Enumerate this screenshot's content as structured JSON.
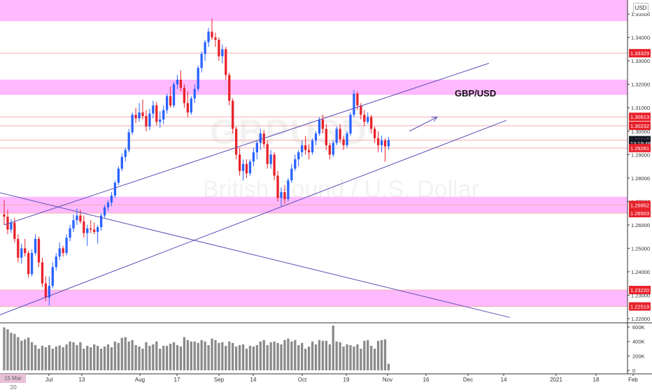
{
  "header": {
    "pair_label": "GBP/USD",
    "currency_badge": "USD",
    "watermark_symbol": "GBPUSD",
    "watermark_description": "British Pound / U.S. Dollar"
  },
  "colors": {
    "up": "#2962ff",
    "down": "#e8212b",
    "zone": "#ff80ff",
    "trendline": "#5b4fb5",
    "volume": "#8a8a8a",
    "price_line": "#f3aeb1"
  },
  "chart_data": {
    "type": "candlestick",
    "price_axis": {
      "ticks": [
        "1.35000",
        "1.34000",
        "1.33000",
        "1.32000",
        "1.31000",
        "1.30000",
        "1.29000",
        "1.28000",
        "1.27000",
        "1.26000",
        "1.25000",
        "1.24000",
        "1.23000",
        "1.22000"
      ],
      "ylim": [
        1.2188,
        1.356
      ]
    },
    "volume_axis": {
      "ticks": [
        "600K",
        "400K",
        "200K",
        "0"
      ],
      "ylim": [
        0,
        620000
      ]
    },
    "time_axis": {
      "labels": [
        "15",
        "Jul",
        "13",
        "Aug",
        "17",
        "Sep",
        "14",
        "Oct",
        "19",
        "Nov",
        "16",
        "Dec",
        "14",
        "2021",
        "18",
        "Feb"
      ]
    },
    "price_labels": [
      {
        "text": "1.33329",
        "value": 1.33329,
        "kind": "level"
      },
      {
        "text": "1.30613",
        "value": 1.30613,
        "kind": "level"
      },
      {
        "text": "1.30232",
        "value": 1.30232,
        "kind": "level"
      },
      {
        "text": "1.29617",
        "value": 1.29617,
        "kind": "last"
      },
      {
        "text": "13:19:48",
        "value": 1.29488,
        "kind": "countdown"
      },
      {
        "text": "1.29281",
        "value": 1.29281,
        "kind": "level"
      },
      {
        "text": "1.26852",
        "value": 1.26852,
        "kind": "level"
      },
      {
        "text": "1.26503",
        "value": 1.26503,
        "kind": "level"
      },
      {
        "text": "1.23220",
        "value": 1.2322,
        "kind": "level"
      },
      {
        "text": "1.22519",
        "value": 1.22519,
        "kind": "level"
      }
    ],
    "horizontal_lines": [
      1.33329,
      1.30613,
      1.30232,
      1.29617,
      1.29281,
      1.26852,
      1.26503,
      1.2322,
      1.22519
    ],
    "zones": [
      {
        "from": 1.347,
        "to": 1.356
      },
      {
        "from": 1.3155,
        "to": 1.322
      },
      {
        "from": 1.265,
        "to": 1.272
      },
      {
        "from": 1.2252,
        "to": 1.2322
      }
    ],
    "date_badge": "15 Mar '20",
    "candles": [
      [
        1.2645,
        1.2705,
        1.26,
        1.2635
      ],
      [
        1.2635,
        1.2665,
        1.256,
        1.258
      ],
      [
        1.258,
        1.2625,
        1.2565,
        1.261
      ],
      [
        1.261,
        1.263,
        1.2525,
        1.254
      ],
      [
        1.254,
        1.256,
        1.244,
        1.246
      ],
      [
        1.246,
        1.252,
        1.2435,
        1.25
      ],
      [
        1.25,
        1.254,
        1.2465,
        1.248
      ],
      [
        1.248,
        1.249,
        1.2375,
        1.239
      ],
      [
        1.239,
        1.2495,
        1.238,
        1.248
      ],
      [
        1.248,
        1.256,
        1.247,
        1.254
      ],
      [
        1.254,
        1.255,
        1.242,
        1.244
      ],
      [
        1.244,
        1.246,
        1.2335,
        1.235
      ],
      [
        1.235,
        1.238,
        1.2275,
        1.229
      ],
      [
        1.229,
        1.238,
        1.2256,
        1.234
      ],
      [
        1.234,
        1.244,
        1.233,
        1.242
      ],
      [
        1.242,
        1.248,
        1.2405,
        1.2465
      ],
      [
        1.2465,
        1.2525,
        1.245,
        1.25
      ],
      [
        1.25,
        1.251,
        1.2465,
        1.248
      ],
      [
        1.248,
        1.256,
        1.247,
        1.2545
      ],
      [
        1.2545,
        1.26,
        1.253,
        1.2585
      ],
      [
        1.2585,
        1.2645,
        1.257,
        1.262
      ],
      [
        1.262,
        1.267,
        1.26,
        1.264
      ],
      [
        1.264,
        1.2665,
        1.2605,
        1.2615
      ],
      [
        1.2615,
        1.264,
        1.2545,
        1.2565
      ],
      [
        1.2565,
        1.26,
        1.251,
        1.2585
      ],
      [
        1.2585,
        1.262,
        1.2565,
        1.258
      ],
      [
        1.258,
        1.261,
        1.256,
        1.257
      ],
      [
        1.257,
        1.26,
        1.252,
        1.259
      ],
      [
        1.259,
        1.265,
        1.2575,
        1.264
      ],
      [
        1.264,
        1.2685,
        1.263,
        1.2675
      ],
      [
        1.2675,
        1.2705,
        1.266,
        1.2695
      ],
      [
        1.2695,
        1.274,
        1.268,
        1.2725
      ],
      [
        1.2725,
        1.279,
        1.2715,
        1.278
      ],
      [
        1.278,
        1.285,
        1.277,
        1.284
      ],
      [
        1.284,
        1.2905,
        1.283,
        1.289
      ],
      [
        1.289,
        1.293,
        1.287,
        1.292
      ],
      [
        1.292,
        1.301,
        1.291,
        1.2995
      ],
      [
        1.2995,
        1.308,
        1.2985,
        1.307
      ],
      [
        1.307,
        1.31,
        1.3035,
        1.3055
      ],
      [
        1.3055,
        1.312,
        1.304,
        1.308
      ],
      [
        1.308,
        1.3135,
        1.305,
        1.3065
      ],
      [
        1.3065,
        1.309,
        1.3,
        1.302
      ],
      [
        1.302,
        1.3095,
        1.3005,
        1.3075
      ],
      [
        1.3075,
        1.313,
        1.3055,
        1.311
      ],
      [
        1.311,
        1.3125,
        1.3025,
        1.304
      ],
      [
        1.304,
        1.3085,
        1.3015,
        1.305
      ],
      [
        1.305,
        1.311,
        1.303,
        1.309
      ],
      [
        1.309,
        1.316,
        1.3075,
        1.315
      ],
      [
        1.315,
        1.319,
        1.31,
        1.311
      ],
      [
        1.311,
        1.321,
        1.31,
        1.32
      ],
      [
        1.32,
        1.324,
        1.318,
        1.322
      ],
      [
        1.322,
        1.326,
        1.317,
        1.3185
      ],
      [
        1.3185,
        1.32,
        1.31,
        1.312
      ],
      [
        1.312,
        1.317,
        1.306,
        1.308
      ],
      [
        1.308,
        1.315,
        1.307,
        1.314
      ],
      [
        1.314,
        1.32,
        1.312,
        1.318
      ],
      [
        1.318,
        1.328,
        1.317,
        1.327
      ],
      [
        1.327,
        1.334,
        1.325,
        1.333
      ],
      [
        1.333,
        1.339,
        1.33,
        1.338
      ],
      [
        1.338,
        1.344,
        1.336,
        1.3425
      ],
      [
        1.3425,
        1.3481,
        1.339,
        1.34
      ],
      [
        1.34,
        1.342,
        1.336,
        1.339
      ],
      [
        1.339,
        1.34,
        1.33,
        1.332
      ],
      [
        1.332,
        1.337,
        1.329,
        1.335
      ],
      [
        1.335,
        1.336,
        1.322,
        1.324
      ],
      [
        1.324,
        1.325,
        1.311,
        1.313
      ],
      [
        1.313,
        1.314,
        1.299,
        1.301
      ],
      [
        1.301,
        1.302,
        1.288,
        1.29
      ],
      [
        1.29,
        1.293,
        1.281,
        1.283
      ],
      [
        1.283,
        1.288,
        1.279,
        1.286
      ],
      [
        1.286,
        1.288,
        1.28,
        1.282
      ],
      [
        1.282,
        1.288,
        1.281,
        1.287
      ],
      [
        1.287,
        1.293,
        1.285,
        1.291
      ],
      [
        1.291,
        1.296,
        1.288,
        1.295
      ],
      [
        1.295,
        1.301,
        1.292,
        1.299
      ],
      [
        1.299,
        1.3005,
        1.293,
        1.2945
      ],
      [
        1.2945,
        1.296,
        1.284,
        1.286
      ],
      [
        1.286,
        1.292,
        1.284,
        1.29
      ],
      [
        1.29,
        1.291,
        1.279,
        1.281
      ],
      [
        1.281,
        1.283,
        1.27,
        1.2715
      ],
      [
        1.2715,
        1.276,
        1.268,
        1.274
      ],
      [
        1.274,
        1.277,
        1.269,
        1.271
      ],
      [
        1.271,
        1.28,
        1.27,
        1.279
      ],
      [
        1.279,
        1.286,
        1.278,
        1.284
      ],
      [
        1.284,
        1.29,
        1.283,
        1.288
      ],
      [
        1.288,
        1.292,
        1.285,
        1.291
      ],
      [
        1.291,
        1.296,
        1.289,
        1.294
      ],
      [
        1.294,
        1.298,
        1.29,
        1.292
      ],
      [
        1.292,
        1.2945,
        1.288,
        1.291
      ],
      [
        1.291,
        1.297,
        1.29,
        1.296
      ],
      [
        1.296,
        1.3,
        1.294,
        1.299
      ],
      [
        1.299,
        1.306,
        1.298,
        1.305
      ],
      [
        1.305,
        1.307,
        1.299,
        1.301
      ],
      [
        1.301,
        1.303,
        1.292,
        1.294
      ],
      [
        1.294,
        1.295,
        1.288,
        1.29
      ],
      [
        1.29,
        1.296,
        1.289,
        1.295
      ],
      [
        1.295,
        1.302,
        1.294,
        1.301
      ],
      [
        1.301,
        1.303,
        1.295,
        1.2965
      ],
      [
        1.2965,
        1.298,
        1.292,
        1.294
      ],
      [
        1.294,
        1.3,
        1.293,
        1.299
      ],
      [
        1.299,
        1.308,
        1.298,
        1.307
      ],
      [
        1.307,
        1.3176,
        1.306,
        1.316
      ],
      [
        1.316,
        1.317,
        1.309,
        1.311
      ],
      [
        1.311,
        1.312,
        1.305,
        1.307
      ],
      [
        1.307,
        1.309,
        1.302,
        1.304
      ],
      [
        1.304,
        1.308,
        1.303,
        1.306
      ],
      [
        1.306,
        1.307,
        1.299,
        1.301
      ],
      [
        1.301,
        1.302,
        1.295,
        1.297
      ],
      [
        1.297,
        1.3,
        1.291,
        1.294
      ],
      [
        1.294,
        1.298,
        1.291,
        1.296
      ],
      [
        1.296,
        1.297,
        1.287,
        1.2935
      ],
      [
        1.2935,
        1.2975,
        1.292,
        1.2962
      ]
    ],
    "volumes": [
      595000,
      570000,
      520000,
      505000,
      460000,
      410000,
      430000,
      455000,
      390000,
      350000,
      300000,
      340000,
      320000,
      350000,
      300000,
      330000,
      345000,
      320000,
      360000,
      400000,
      390000,
      350000,
      390000,
      300000,
      340000,
      320000,
      360000,
      340000,
      300000,
      330000,
      360000,
      320000,
      400000,
      380000,
      450000,
      460000,
      400000,
      420000,
      350000,
      330000,
      300000,
      390000,
      340000,
      360000,
      400000,
      300000,
      340000,
      340000,
      370000,
      390000,
      350000,
      330000,
      460000,
      420000,
      400000,
      400000,
      380000,
      420000,
      400000,
      350000,
      440000,
      420000,
      380000,
      390000,
      340000,
      400000,
      380000,
      330000,
      350000,
      360000,
      300000,
      340000,
      330000,
      350000,
      400000,
      420000,
      350000,
      390000,
      400000,
      380000,
      360000,
      420000,
      440000,
      400000,
      420000,
      350000,
      380000,
      300000,
      330000,
      400000,
      360000,
      420000,
      410000,
      410000,
      360000,
      620000,
      400000,
      390000,
      330000,
      360000,
      350000,
      330000,
      360000,
      300000,
      410000,
      420000,
      340000,
      300000,
      410000,
      420000,
      430000,
      90000
    ],
    "lines": [
      {
        "role": "channel-lower",
        "from": {
          "bar": -12,
          "price": 1.2155
        },
        "to": {
          "bar": 145,
          "price": 1.3046
        }
      },
      {
        "role": "channel-upper",
        "from": {
          "bar": 0,
          "price": 1.26
        },
        "to": {
          "bar": 140,
          "price": 1.329
        }
      },
      {
        "role": "long-term-descending",
        "from": {
          "bar": -2,
          "price": 1.274
        },
        "to": {
          "bar": 146,
          "price": 1.2205
        }
      }
    ],
    "arrows": [
      {
        "role": "forecast-up",
        "from": {
          "bar": 117,
          "price": 1.3
        },
        "to": {
          "bar": 125,
          "price": 1.306
        }
      }
    ]
  }
}
